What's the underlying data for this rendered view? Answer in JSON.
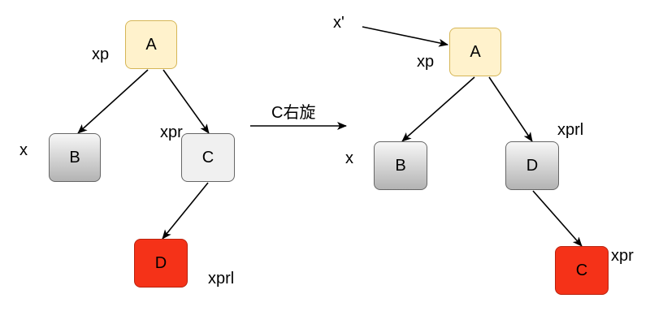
{
  "left_tree": {
    "nodes": {
      "a": "A",
      "b": "B",
      "c": "C",
      "d": "D"
    },
    "labels": {
      "xp": "xp",
      "x": "x",
      "xpr": "xpr",
      "xprl": "xprl"
    }
  },
  "operation": {
    "label": "C右旋"
  },
  "right_tree": {
    "nodes": {
      "a": "A",
      "b": "B",
      "d": "D",
      "c": "C"
    },
    "labels": {
      "x_prime": "x'",
      "xp": "xp",
      "x": "x",
      "xprl": "xprl",
      "xpr": "xpr"
    }
  },
  "colors": {
    "root_fill": "#fff2cc",
    "root_stroke": "#d6b656",
    "highlight_fill": "#f53218",
    "node_stroke": "#666666"
  }
}
